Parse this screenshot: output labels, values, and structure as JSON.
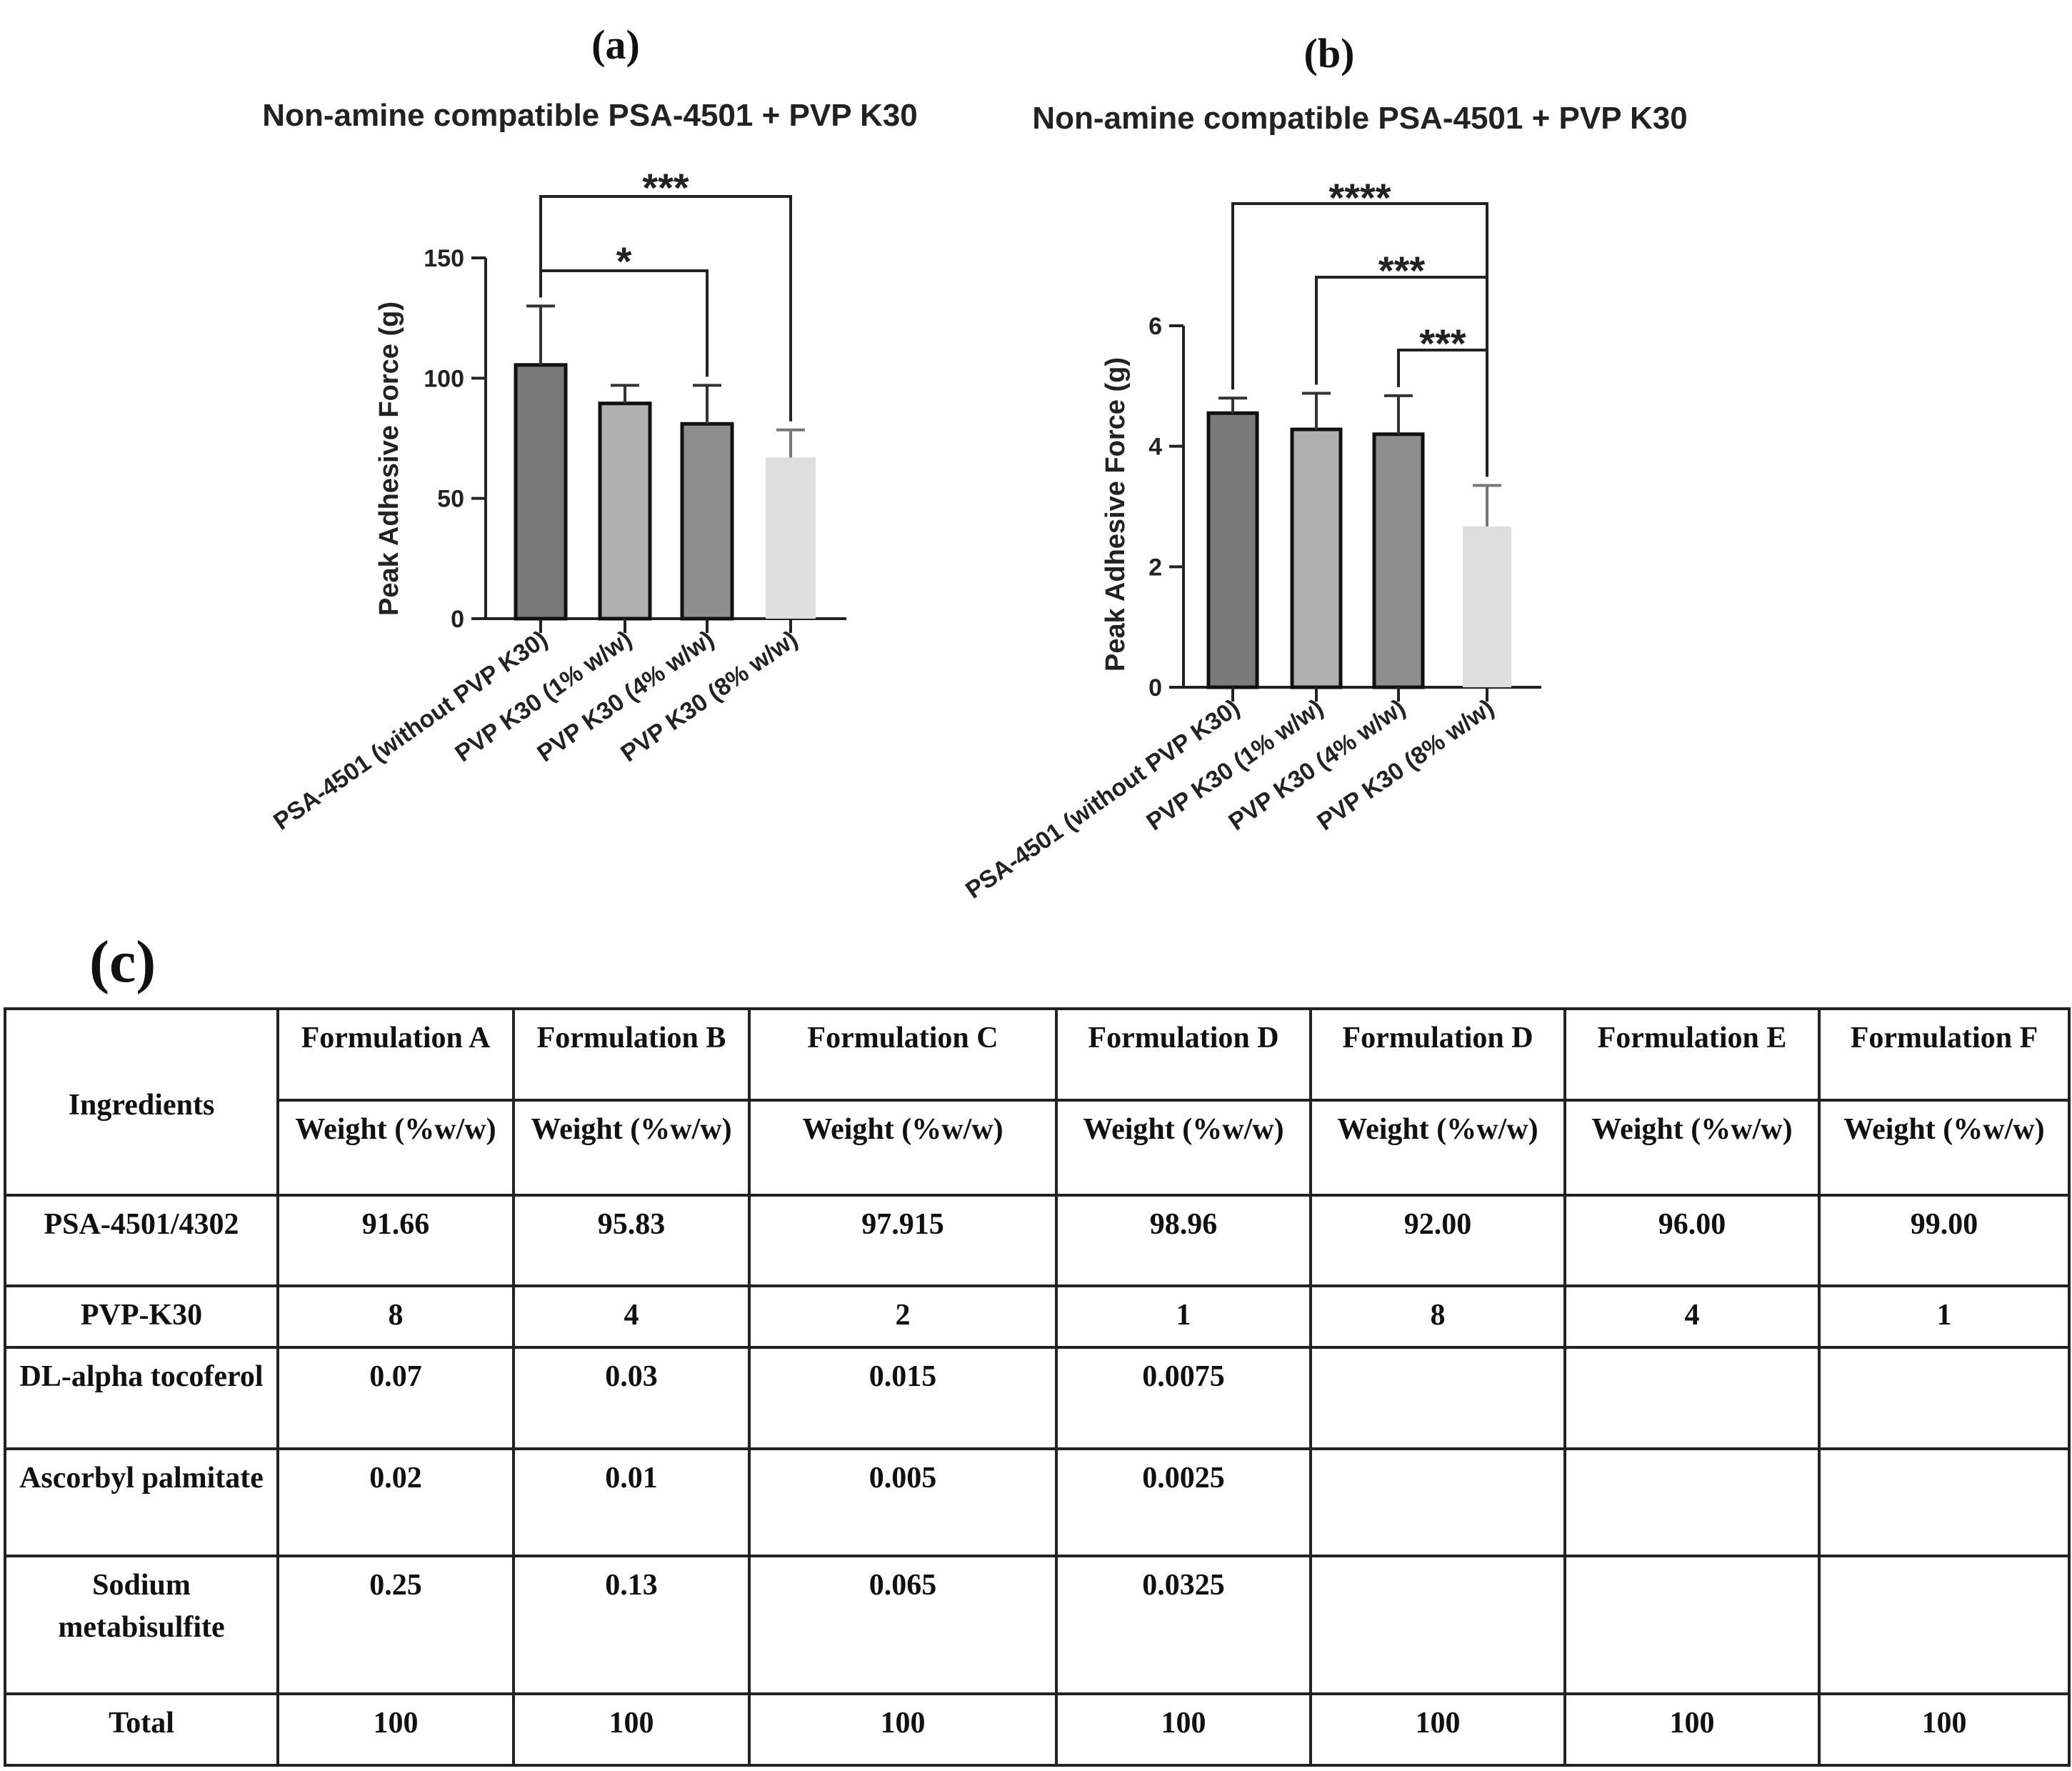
{
  "panels": {
    "a": {
      "label": "(a)"
    },
    "b": {
      "label": "(b)"
    },
    "c": {
      "label": "(c)"
    }
  },
  "chart_data": [
    {
      "type": "bar",
      "title": "Non-amine compatible PSA-4501 + PVP K30",
      "ylabel": "Peak Adhesive Force (g)",
      "xlabel": "",
      "categories": [
        "PSA-4501 (without PVP K30)",
        "PVP K30 (1% w/w)",
        "PVP K30 (4% w/w)",
        "PVP K30 (8% w/w)"
      ],
      "values": [
        105.5,
        89.5,
        81,
        67
      ],
      "errors": [
        24.5,
        7.5,
        16,
        11.5
      ],
      "ylim": [
        0,
        150
      ],
      "yticks": [
        0,
        50,
        100,
        150
      ],
      "bar_colors": [
        "#7a7a7a",
        "#b0b0b0",
        "#8e8e8e",
        "#dedede"
      ],
      "significance": [
        {
          "from": 0,
          "to": 2,
          "label": "*"
        },
        {
          "from": 0,
          "to": 3,
          "label": "***"
        }
      ]
    },
    {
      "type": "bar",
      "title": "Non-amine compatible PSA-4501 + PVP K30",
      "ylabel": "Peak Adhesive Force (g)",
      "xlabel": "",
      "categories": [
        "PSA-4501 (without PVP K30)",
        "PVP K30 (1% w/w)",
        "PVP K30 (4% w/w)",
        "PVP K30 (8% w/w)"
      ],
      "values": [
        4.55,
        4.28,
        4.2,
        2.67
      ],
      "errors": [
        0.25,
        0.6,
        0.64,
        0.68
      ],
      "ylim": [
        0,
        6
      ],
      "yticks": [
        0,
        2,
        4,
        6
      ],
      "bar_colors": [
        "#7a7a7a",
        "#b0b0b0",
        "#8e8e8e",
        "#dedede"
      ],
      "significance": [
        {
          "from": 0,
          "to": 3,
          "label": "****"
        },
        {
          "from": 1,
          "to": 3,
          "label": "***"
        },
        {
          "from": 2,
          "to": 3,
          "label": "***"
        }
      ]
    },
    {
      "type": "table",
      "ingredients_header": "Ingredients",
      "columns": [
        {
          "name": "Formulation A",
          "unit": "Weight (%w/w)"
        },
        {
          "name": "Formulation B",
          "unit": "Weight (%w/w)"
        },
        {
          "name": "Formulation C",
          "unit": "Weight (%w/w)"
        },
        {
          "name": "Formulation D",
          "unit": "Weight (%w/w)"
        },
        {
          "name": "Formulation D",
          "unit": "Weight (%w/w)"
        },
        {
          "name": "Formulation E",
          "unit": "Weight (%w/w)"
        },
        {
          "name": "Formulation F",
          "unit": "Weight (%w/w)"
        }
      ],
      "rows": [
        {
          "ingredient": "PSA-4501/4302",
          "values": [
            "91.66",
            "95.83",
            "97.915",
            "98.96",
            "92.00",
            "96.00",
            "99.00"
          ]
        },
        {
          "ingredient": "PVP-K30",
          "values": [
            "8",
            "4",
            "2",
            "1",
            "8",
            "4",
            "1"
          ]
        },
        {
          "ingredient": "DL-alpha tocoferol",
          "values": [
            "0.07",
            "0.03",
            "0.015",
            "0.0075",
            "",
            "",
            ""
          ]
        },
        {
          "ingredient": "Ascorbyl palmitate",
          "values": [
            "0.02",
            "0.01",
            "0.005",
            "0.0025",
            "",
            "",
            ""
          ]
        },
        {
          "ingredient": "Sodium metabisulfite",
          "values": [
            "0.25",
            "0.13",
            "0.065",
            "0.0325",
            "",
            "",
            ""
          ]
        },
        {
          "ingredient": "Total",
          "values": [
            "100",
            "100",
            "100",
            "100",
            "100",
            "100",
            "100"
          ]
        }
      ]
    }
  ]
}
